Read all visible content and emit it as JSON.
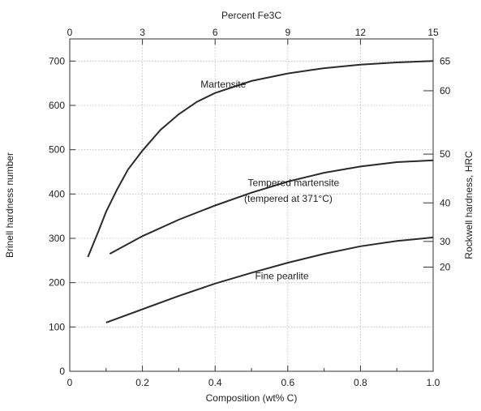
{
  "chart_data": {
    "type": "line",
    "title": "",
    "xlabel": "Composition (wt% C)",
    "ylabel": "Brinell hardness number",
    "top_axis_label": "Percent Fe3C",
    "right_axis_label": "Rockwell hardness, HRC",
    "xlim": [
      0,
      1.0
    ],
    "ylim": [
      0,
      750
    ],
    "x_ticks": [
      "0",
      "0.2",
      "0.4",
      "0.6",
      "0.8",
      "1.0"
    ],
    "y_ticks": [
      "0",
      "100",
      "200",
      "300",
      "400",
      "500",
      "600",
      "700"
    ],
    "top_ticks": [
      "0",
      "3",
      "6",
      "9",
      "12",
      "15"
    ],
    "right_axis": [
      {
        "label": "65",
        "brinell": 700
      },
      {
        "label": "60",
        "brinell": 633
      },
      {
        "label": "50",
        "brinell": 490
      },
      {
        "label": "40",
        "brinell": 380
      },
      {
        "label": "30",
        "brinell": 293
      },
      {
        "label": "20",
        "brinell": 235
      }
    ],
    "grid": true,
    "series": [
      {
        "name": "Martensite",
        "x": [
          0.05,
          0.08,
          0.1,
          0.13,
          0.16,
          0.2,
          0.25,
          0.3,
          0.35,
          0.4,
          0.5,
          0.6,
          0.7,
          0.8,
          0.9,
          1.0
        ],
        "y": [
          258,
          318,
          360,
          410,
          455,
          498,
          545,
          580,
          608,
          628,
          655,
          672,
          684,
          692,
          697,
          700
        ]
      },
      {
        "name": "Tempered martensite (tempered at 371°C)",
        "x": [
          0.11,
          0.2,
          0.3,
          0.4,
          0.5,
          0.6,
          0.7,
          0.8,
          0.9,
          1.0
        ],
        "y": [
          265,
          305,
          342,
          374,
          403,
          428,
          448,
          462,
          472,
          476
        ]
      },
      {
        "name": "Fine pearlite",
        "x": [
          0.1,
          0.2,
          0.3,
          0.4,
          0.5,
          0.6,
          0.7,
          0.8,
          0.9,
          1.0
        ],
        "y": [
          110,
          140,
          170,
          198,
          222,
          245,
          265,
          282,
          294,
          302
        ]
      }
    ],
    "annotations": [
      {
        "text": "Martensite",
        "x": 0.36,
        "y": 640
      },
      {
        "text": "Tempered martensite",
        "x": 0.49,
        "y": 418
      },
      {
        "text": "(tempered at 371°C)",
        "x": 0.48,
        "y": 382
      },
      {
        "text": "Fine pearlite",
        "x": 0.51,
        "y": 208
      }
    ]
  }
}
